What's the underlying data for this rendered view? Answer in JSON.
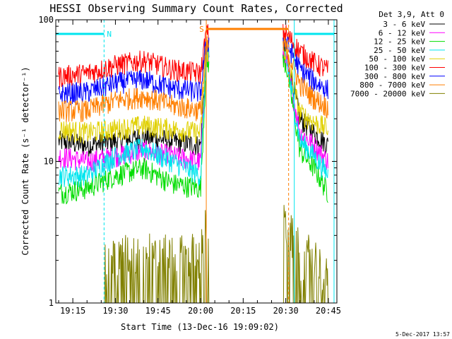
{
  "chart_data": {
    "type": "line",
    "title": "HESSI Observing Summary Count Rates, Corrected",
    "xlabel": "Start Time (13-Dec-16 19:09:02)",
    "ylabel": "Corrected Count Rate (s⁻¹ detector⁻¹)",
    "y_scale": "log",
    "ylim": [
      1,
      100
    ],
    "y_ticks": [
      "1",
      "10",
      "100"
    ],
    "xlim": [
      "19:09",
      "20:48"
    ],
    "x_ticks": [
      "19:15",
      "19:30",
      "19:45",
      "20:00",
      "20:15",
      "20:30",
      "20:45"
    ],
    "legend_header": "Det 3,9, Att 0",
    "legend_position": "right",
    "timestamp": "5-Dec-2017 13:57",
    "data_gaps": [
      [
        "20:03",
        "20:29"
      ]
    ],
    "markers": [
      {
        "label": "N",
        "type": "night",
        "start": "19:09",
        "end": "19:26",
        "color": "#00e5ee"
      },
      {
        "label": "S",
        "type": "saa",
        "start": "20:02",
        "end": "20:31",
        "color": "#ff7f00"
      },
      {
        "label": "",
        "type": "night",
        "start": "20:33",
        "end": "20:47",
        "color": "#00e5ee"
      }
    ],
    "x": [
      "19:10",
      "19:20",
      "19:30",
      "19:40",
      "19:50",
      "20:00",
      "20:02",
      "20:30",
      "20:35",
      "20:40",
      "20:45"
    ],
    "series": [
      {
        "name": "3 - 6 keV",
        "color": "#000000",
        "values": [
          14,
          13,
          14,
          15,
          14,
          13,
          60,
          60,
          20,
          16,
          13
        ]
      },
      {
        "name": "6 - 12 keV",
        "color": "#ff00ff",
        "values": [
          11,
          10,
          11,
          12,
          11,
          10,
          55,
          55,
          16,
          13,
          10
        ]
      },
      {
        "name": "12 - 25 keV",
        "color": "#00dd00",
        "values": [
          6,
          6.5,
          8,
          9,
          7,
          6.5,
          50,
          50,
          12,
          9,
          6
        ]
      },
      {
        "name": "25 - 50 keV",
        "color": "#00e5ee",
        "values": [
          8,
          8,
          11,
          12.5,
          10,
          8,
          55,
          55,
          14,
          11,
          8
        ]
      },
      {
        "name": "50 - 100 keV",
        "color": "#e0d000",
        "values": [
          17,
          16,
          17,
          18,
          17,
          16,
          60,
          60,
          22,
          19,
          17
        ]
      },
      {
        "name": "100 - 300 keV",
        "color": "#ff0000",
        "values": [
          40,
          42,
          48,
          52,
          45,
          42,
          80,
          80,
          60,
          50,
          44
        ]
      },
      {
        "name": "300 - 800 keV",
        "color": "#0000ff",
        "values": [
          30,
          31,
          36,
          38,
          33,
          31,
          70,
          70,
          45,
          37,
          32
        ]
      },
      {
        "name": "800 - 7000 keV",
        "color": "#ff7f00",
        "values": [
          23,
          23,
          27,
          29,
          25,
          23,
          65,
          65,
          35,
          28,
          24
        ]
      },
      {
        "name": "7000 - 20000 keV",
        "color": "#808000",
        "values": [
          1,
          1,
          1.5,
          1.6,
          1.5,
          1.6,
          2.5,
          2.5,
          1.6,
          1.5,
          1
        ]
      }
    ]
  }
}
